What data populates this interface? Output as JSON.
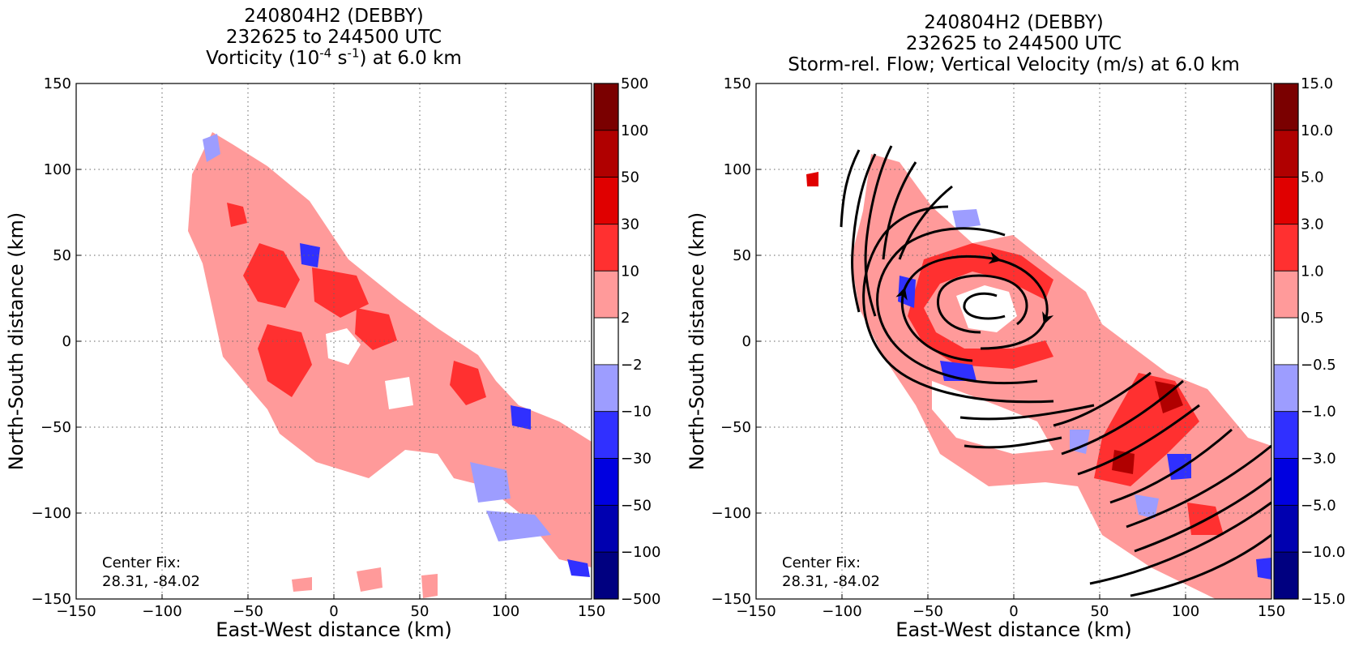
{
  "chart_data": [
    {
      "type": "heatmap",
      "title_lines": [
        "240804H2 (DEBBY)",
        "232625 to 244500 UTC"
      ],
      "field_title": {
        "prefix": "Vorticity (10",
        "exp1": "-4",
        "mid": " s",
        "exp2": "-1",
        "suffix": ") at 6.0 km"
      },
      "xlabel": "East-West distance (km)",
      "ylabel": "North-South distance (km)",
      "xlim": [
        -150,
        150
      ],
      "ylim": [
        -150,
        150
      ],
      "xticks": [
        "−150",
        "−100",
        "−50",
        "0",
        "50",
        "100",
        "150"
      ],
      "yticks": [
        "150",
        "100",
        "50",
        "0",
        "−50",
        "−100",
        "−150"
      ],
      "grid": true,
      "annotation": {
        "line1": "Center Fix:",
        "line2": "28.31, -84.02"
      },
      "colorbar": {
        "labels": [
          "500",
          "100",
          "50",
          "30",
          "10",
          "2",
          "−2",
          "−10",
          "−30",
          "−50",
          "−100",
          "−500"
        ],
        "colors": [
          "#7a0000",
          "#b00000",
          "#e00000",
          "#ff3030",
          "#ff9a9a",
          "#ffffff",
          "#9d9dff",
          "#3030ff",
          "#0000e0",
          "#0000b0",
          "#000080"
        ]
      }
    },
    {
      "type": "heatmap",
      "title_lines": [
        "240804H2 (DEBBY)",
        "232625 to 244500 UTC"
      ],
      "field_title": {
        "text": "Storm-rel. Flow; Vertical Velocity (m/s) at 6.0 km"
      },
      "xlabel": "East-West distance (km)",
      "ylabel": "North-South distance (km)",
      "xlim": [
        -150,
        150
      ],
      "ylim": [
        -150,
        150
      ],
      "xticks": [
        "−150",
        "−100",
        "−50",
        "0",
        "50",
        "100",
        "150"
      ],
      "yticks": [
        "150",
        "100",
        "50",
        "0",
        "−50",
        "−100",
        "−150"
      ],
      "grid": true,
      "annotation": {
        "line1": "Center Fix:",
        "line2": "28.31, -84.02"
      },
      "colorbar": {
        "labels": [
          "15.0",
          "10.0",
          "5.0",
          "3.0",
          "1.0",
          "0.5",
          "−0.5",
          "−1.0",
          "−3.0",
          "−5.0",
          "−10.0",
          "−15.0"
        ],
        "colors": [
          "#7a0000",
          "#b00000",
          "#e00000",
          "#ff3030",
          "#ff9a9a",
          "#ffffff",
          "#9d9dff",
          "#3030ff",
          "#0000e0",
          "#0000b0",
          "#000080"
        ]
      }
    }
  ]
}
